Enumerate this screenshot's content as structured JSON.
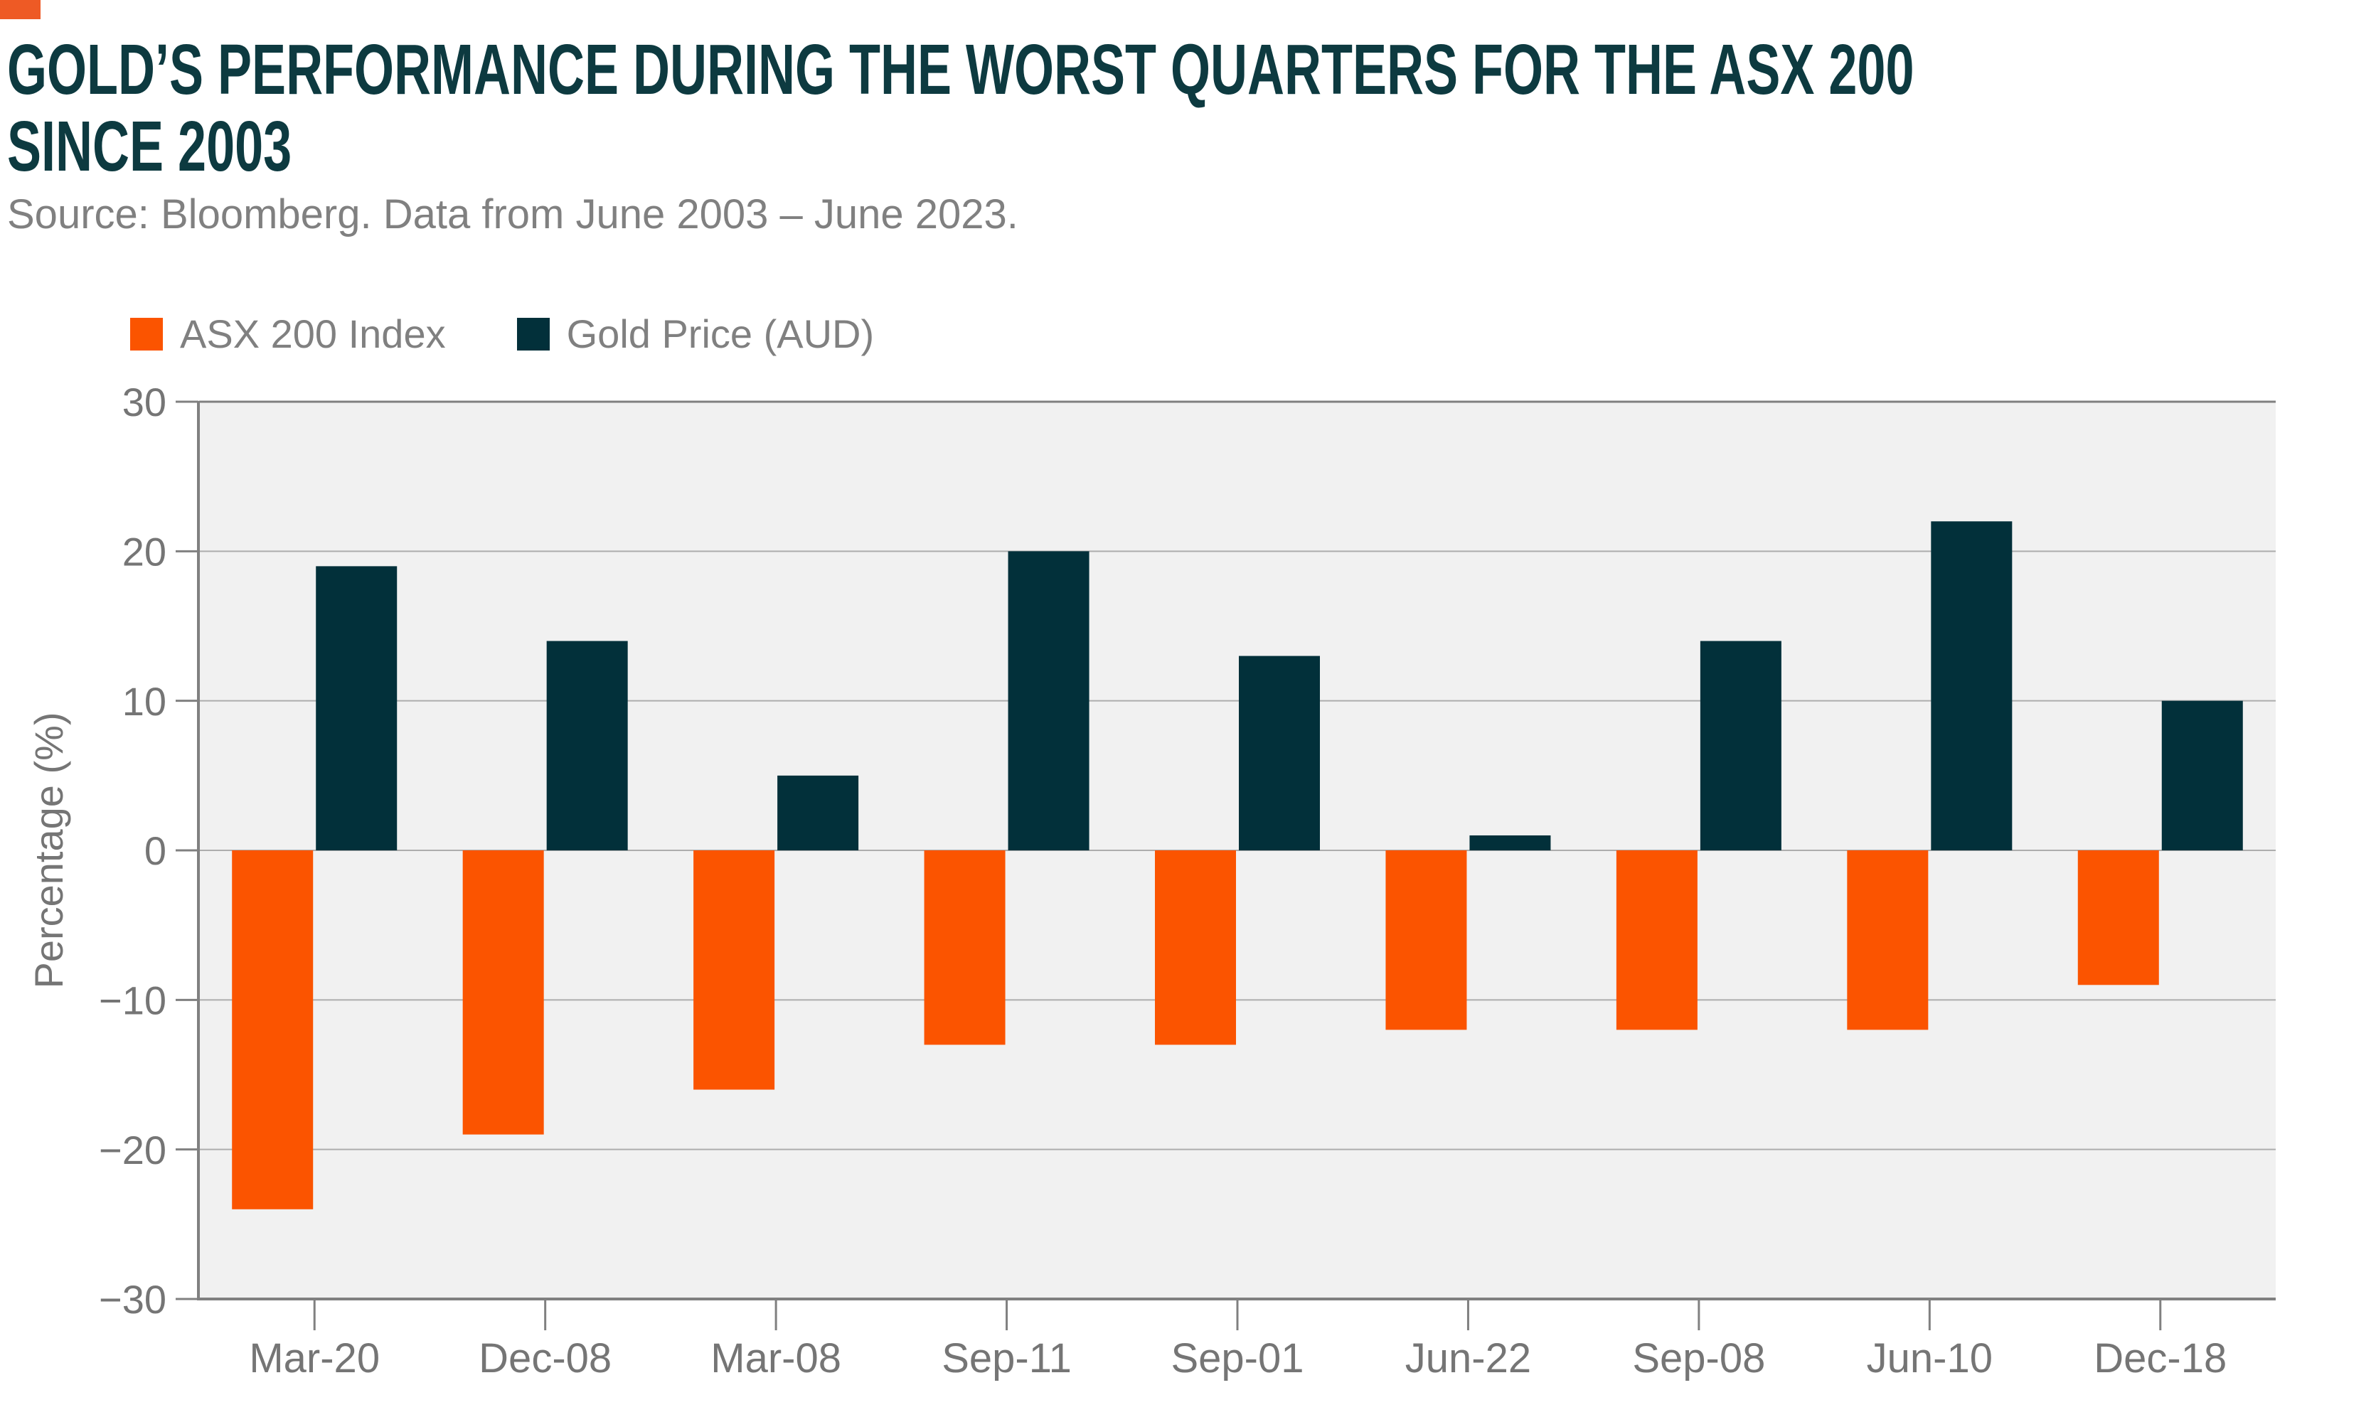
{
  "header": {
    "title_line1": "GOLD’S PERFORMANCE DURING THE WORST QUARTERS FOR THE ASX 200",
    "title_line2": "SINCE 2003",
    "source": "Source: Bloomberg. Data from June 2003 – June 2023."
  },
  "colors": {
    "accent_orange": "#EE5A25",
    "bar_orange": "#FB5400",
    "bar_dark_teal": "#02303A",
    "title_text": "#0D3A40",
    "muted_text": "#808080",
    "tick_text": "#757575",
    "plot_background": "#F1F1F1",
    "grid_line": "#ADADAD",
    "axis_line": "#808080"
  },
  "chart_data": {
    "type": "bar",
    "title": "GOLD’S PERFORMANCE DURING THE WORST QUARTERS FOR THE ASX 200 SINCE 2003",
    "subtitle": "Source: Bloomberg. Data from June 2003 – June 2023.",
    "categories": [
      "Mar-20",
      "Dec-08",
      "Mar-08",
      "Sep-11",
      "Sep-01",
      "Jun-22",
      "Sep-08",
      "Jun-10",
      "Dec-18"
    ],
    "series": [
      {
        "name": "ASX 200 Index",
        "color": "#FB5400",
        "values": [
          -24,
          -19,
          -16,
          -13,
          -13,
          -12,
          -12,
          -12,
          -9
        ]
      },
      {
        "name": "Gold Price (AUD)",
        "color": "#02303A",
        "values": [
          19,
          14,
          5,
          20,
          13,
          1,
          14,
          22,
          10
        ]
      }
    ],
    "xlabel": "",
    "ylabel": "Percentage (%)",
    "ylim": [
      -30,
      30
    ],
    "yticks": [
      30,
      20,
      10,
      0,
      -10,
      -20,
      -30
    ],
    "grid": true,
    "legend_position": "top-left",
    "plot_background": "#F1F1F1"
  }
}
